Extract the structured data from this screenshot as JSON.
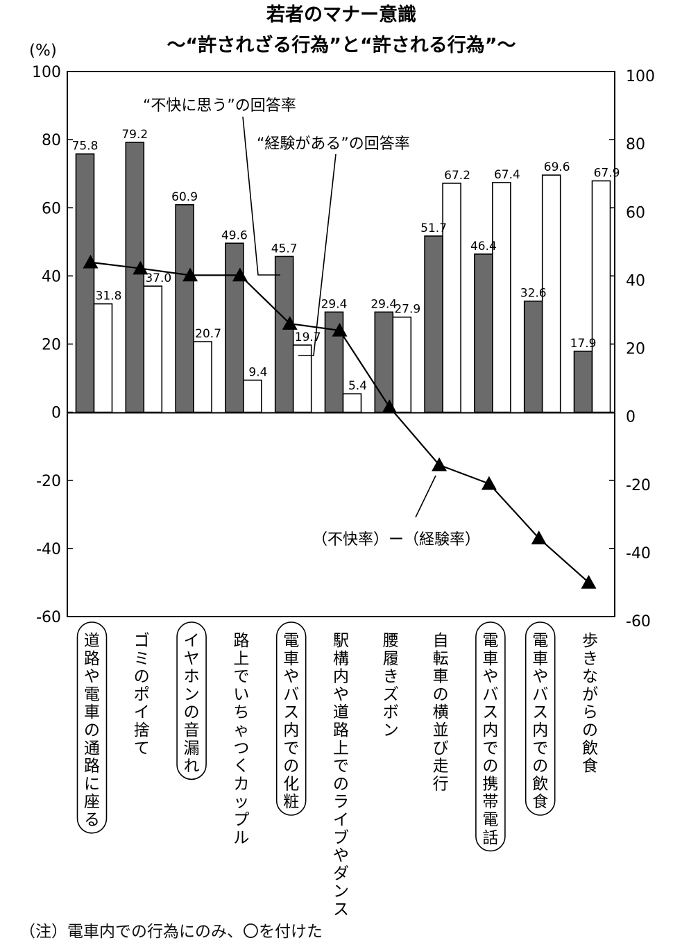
{
  "chart_data": {
    "type": "bar",
    "title": "若者のマナー意識",
    "subtitle": "～“許されざる行為”と“許される行為”～",
    "ylabel_left": "(%)",
    "ylim": [
      -60,
      100
    ],
    "y_ticks": [
      100,
      80,
      60,
      40,
      20,
      0,
      -20,
      -40,
      -60
    ],
    "categories": [
      "道路や電車の通路に座る",
      "ゴミのポイ捨て",
      "イヤホンの音漏れ",
      "路上でいちゃつくカップル",
      "電車やバス内での化粧",
      "駅構内や道路上でのライブやダンス",
      "腰履きズボン",
      "自転車の横並び走行",
      "電車やバス内での携帯電話",
      "電車やバス内での飲食",
      "歩きながらの飲食"
    ],
    "circled": [
      true,
      false,
      true,
      false,
      true,
      false,
      false,
      false,
      true,
      true,
      false
    ],
    "series": [
      {
        "name": "“不快に思う”の回答率",
        "kind": "bar",
        "color": "#6b6b6b",
        "values": [
          75.8,
          79.2,
          60.9,
          49.6,
          45.7,
          29.4,
          29.4,
          51.7,
          46.4,
          32.6,
          17.9
        ],
        "labels": [
          "75.8",
          "79.2",
          "60.9",
          "49.6",
          "45.7",
          "29.4",
          "29.4",
          "51.7",
          "46.4",
          "32.6",
          "17.9"
        ]
      },
      {
        "name": "“経験がある”の回答率",
        "kind": "bar",
        "color": "#ffffff",
        "values": [
          31.8,
          37.0,
          20.7,
          9.4,
          19.7,
          5.4,
          27.9,
          67.2,
          67.4,
          69.6,
          67.9
        ],
        "labels": [
          "31.8",
          "37.0",
          "20.7",
          "9.4",
          "19.7",
          "5.4",
          "27.9",
          "67.2",
          "67.4",
          "69.6",
          "67.9"
        ]
      },
      {
        "name": "（不快率）ー（経験率）",
        "kind": "line",
        "color": "#000000",
        "values": [
          44.0,
          42.2,
          40.2,
          40.2,
          26.0,
          24.0,
          1.5,
          -15.5,
          -21.0,
          -37.0,
          -50.0
        ]
      }
    ],
    "note": "（注）電車内での行為にのみ、〇を付けた"
  }
}
